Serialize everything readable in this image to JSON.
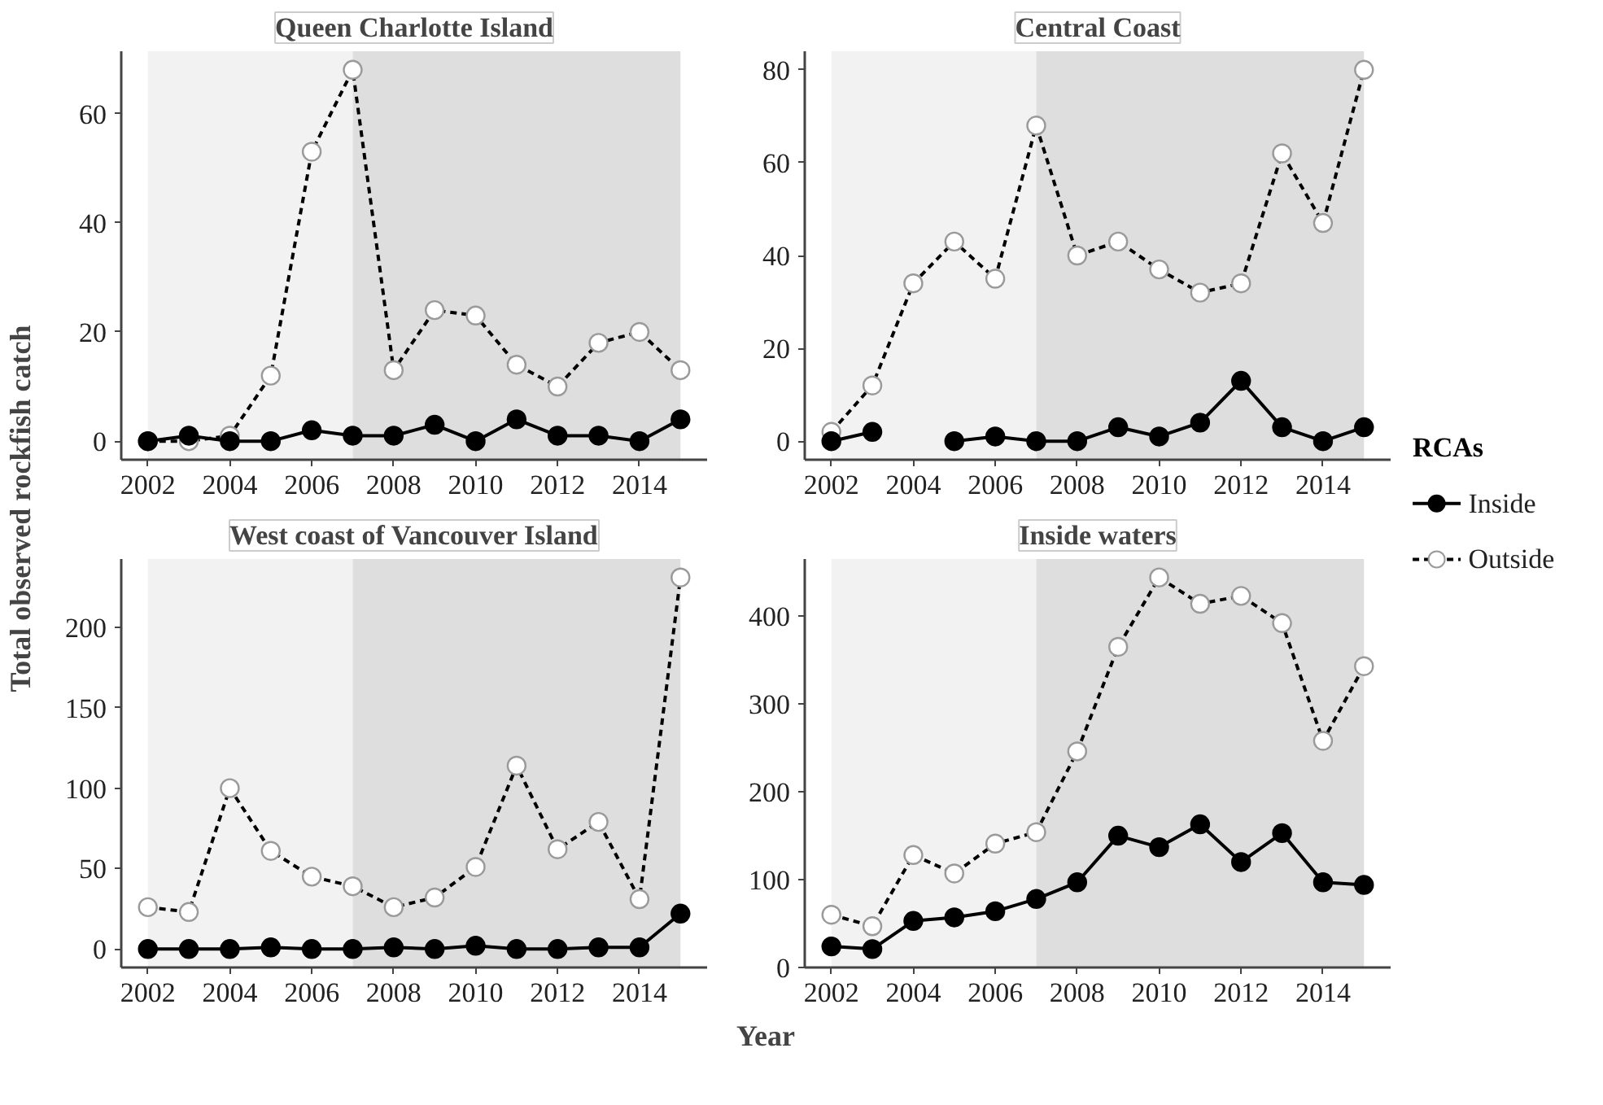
{
  "chart_data": [
    {
      "type": "line",
      "title": "Queen Charlotte Island",
      "ylabel": "Total observed rockfish catch",
      "x": [
        2002,
        2003,
        2004,
        2005,
        2006,
        2007,
        2008,
        2009,
        2010,
        2011,
        2012,
        2013,
        2014,
        2015
      ],
      "xlim": [
        2001.35,
        2015.65
      ],
      "xticks": [
        2002,
        2004,
        2006,
        2008,
        2010,
        2012,
        2014
      ],
      "ylim": [
        -3.4,
        71.4
      ],
      "yticks": [
        0,
        20,
        40,
        60
      ],
      "grid": false,
      "legend": false,
      "marker": "circle",
      "bands": [
        {
          "axis": "x",
          "from": 2002,
          "to": 2007,
          "color": "#f2f2f2"
        },
        {
          "axis": "x",
          "from": 2007,
          "to": 2015,
          "color": "#dedede"
        }
      ],
      "series": [
        {
          "color": "#000000",
          "line_style": "solid",
          "values": [
            0,
            1,
            0,
            0,
            2,
            1,
            1,
            3,
            0,
            4,
            1,
            1,
            0,
            4
          ]
        },
        {
          "color": "#ffffff",
          "line_style": "dashed",
          "values": [
            0,
            0,
            1,
            12,
            53,
            68,
            13,
            24,
            23,
            14,
            10,
            18,
            20,
            13
          ]
        }
      ]
    },
    {
      "type": "line",
      "title": "Central Coast",
      "legend_title": "RCAs",
      "x": [
        2002,
        2003,
        2004,
        2005,
        2006,
        2007,
        2008,
        2009,
        2010,
        2011,
        2012,
        2013,
        2014,
        2015
      ],
      "xlim": [
        2001.35,
        2015.65
      ],
      "xticks": [
        2002,
        2004,
        2006,
        2008,
        2010,
        2012,
        2014
      ],
      "ylim": [
        -4,
        84
      ],
      "yticks": [
        0,
        20,
        40,
        60,
        80
      ],
      "grid": false,
      "legend": "right",
      "marker": "circle",
      "bands": [
        {
          "axis": "x",
          "from": 2002,
          "to": 2007,
          "color": "#f2f2f2"
        },
        {
          "axis": "x",
          "from": 2007,
          "to": 2015,
          "color": "#dedede"
        }
      ],
      "series": [
        {
          "name": "Inside",
          "color": "#000000",
          "line_style": "solid",
          "values": [
            0,
            2,
            null,
            0,
            1,
            0,
            0,
            3,
            1,
            4,
            13,
            3,
            0,
            3
          ]
        },
        {
          "name": "Outside",
          "color": "#ffffff",
          "line_style": "dashed",
          "values": [
            2,
            12,
            34,
            43,
            35,
            68,
            40,
            43,
            37,
            32,
            34,
            62,
            47,
            80
          ]
        }
      ]
    },
    {
      "type": "line",
      "title": "West coast of Vancouver Island",
      "x": [
        2002,
        2003,
        2004,
        2005,
        2006,
        2007,
        2008,
        2009,
        2010,
        2011,
        2012,
        2013,
        2014,
        2015
      ],
      "xlim": [
        2001.35,
        2015.65
      ],
      "xticks": [
        2002,
        2004,
        2006,
        2008,
        2010,
        2012,
        2014
      ],
      "ylim": [
        -11.5,
        242.5
      ],
      "yticks": [
        0,
        50,
        100,
        150,
        200
      ],
      "grid": false,
      "legend": false,
      "marker": "circle",
      "bands": [
        {
          "axis": "x",
          "from": 2002,
          "to": 2007,
          "color": "#f2f2f2"
        },
        {
          "axis": "x",
          "from": 2007,
          "to": 2015,
          "color": "#dedede"
        }
      ],
      "series": [
        {
          "color": "#000000",
          "line_style": "solid",
          "values": [
            0,
            0,
            0,
            1,
            0,
            0,
            1,
            0,
            2,
            0,
            0,
            1,
            1,
            22
          ]
        },
        {
          "color": "#ffffff",
          "line_style": "dashed",
          "values": [
            26,
            23,
            100,
            61,
            45,
            39,
            26,
            32,
            51,
            114,
            62,
            79,
            31,
            231
          ]
        }
      ]
    },
    {
      "type": "line",
      "title": "Inside waters",
      "xlabel": "Year",
      "x": [
        2002,
        2003,
        2004,
        2005,
        2006,
        2007,
        2008,
        2009,
        2010,
        2011,
        2012,
        2013,
        2014,
        2015
      ],
      "xlim": [
        2001.35,
        2015.65
      ],
      "xticks": [
        2002,
        2004,
        2006,
        2008,
        2010,
        2012,
        2014
      ],
      "ylim": [
        0,
        465
      ],
      "yticks": [
        0,
        100,
        200,
        300,
        400
      ],
      "grid": false,
      "legend": false,
      "marker": "circle",
      "bands": [
        {
          "axis": "x",
          "from": 2002,
          "to": 2007,
          "color": "#f2f2f2"
        },
        {
          "axis": "x",
          "from": 2007,
          "to": 2015,
          "color": "#dedede"
        }
      ],
      "series": [
        {
          "color": "#000000",
          "line_style": "solid",
          "values": [
            24,
            21,
            53,
            57,
            64,
            78,
            97,
            150,
            137,
            163,
            120,
            153,
            97,
            94
          ]
        },
        {
          "color": "#ffffff",
          "line_style": "dashed",
          "values": [
            60,
            47,
            128,
            107,
            141,
            154,
            246,
            365,
            444,
            414,
            423,
            392,
            258,
            343
          ]
        }
      ]
    }
  ]
}
